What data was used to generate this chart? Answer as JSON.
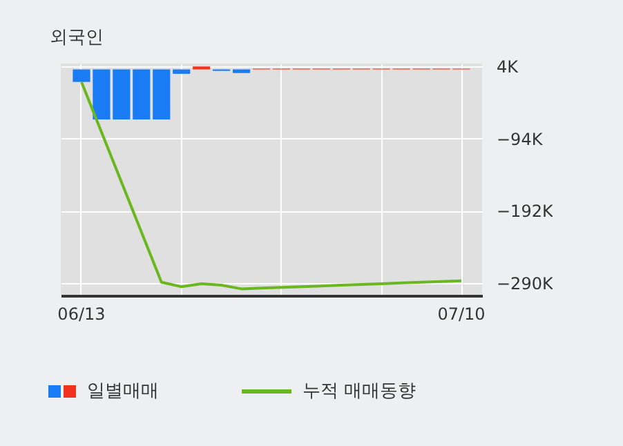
{
  "chart_data": {
    "type": "bar",
    "title": "외국인",
    "categories": [
      "06/13",
      null,
      null,
      null,
      null,
      null,
      null,
      null,
      null,
      null,
      null,
      null,
      null,
      null,
      null,
      null,
      null,
      null,
      null,
      "07/10"
    ],
    "series": [
      {
        "name": "일별매매",
        "colors": [
          "#1a7cf5",
          "#1a7cf5",
          "#1a7cf5",
          "#1a7cf5",
          "#1a7cf5",
          "#1a7cf5",
          "#f0321e",
          "#1a7cf5",
          "#1a7cf5",
          "#f0321e",
          "#f0321e",
          "#f0321e",
          "#f0321e",
          "#f0321e",
          "#f0321e",
          "#f0321e",
          "#f0321e",
          "#f0321e",
          "#f0321e",
          "#f0321e"
        ],
        "values": [
          -17000,
          -68000,
          -68000,
          -68000,
          -68000,
          -6000,
          4000,
          -2000,
          -5000,
          1000,
          1000,
          1000,
          1000,
          1000,
          1000,
          1000,
          1000,
          1000,
          1000,
          1000
        ]
      },
      {
        "name": "누적 매매동향",
        "type": "line",
        "color": "#6ab720",
        "values": [
          -17000,
          -85000,
          -153000,
          -221000,
          -289000,
          -295000,
          -291000,
          -293000,
          -298000,
          -297000,
          -296000,
          -295000,
          -294000,
          -293000,
          -292000,
          -291000,
          -290000,
          -289000,
          -288000,
          -287000
        ]
      }
    ],
    "ylim": [
      -307000,
      8000
    ],
    "yticks": [
      {
        "value": 4000,
        "label": "4K"
      },
      {
        "value": -94000,
        "label": "−94K"
      },
      {
        "value": -192000,
        "label": "−192K"
      },
      {
        "value": -290000,
        "label": "−290K"
      }
    ],
    "grid": true,
    "legend": "bottom"
  }
}
